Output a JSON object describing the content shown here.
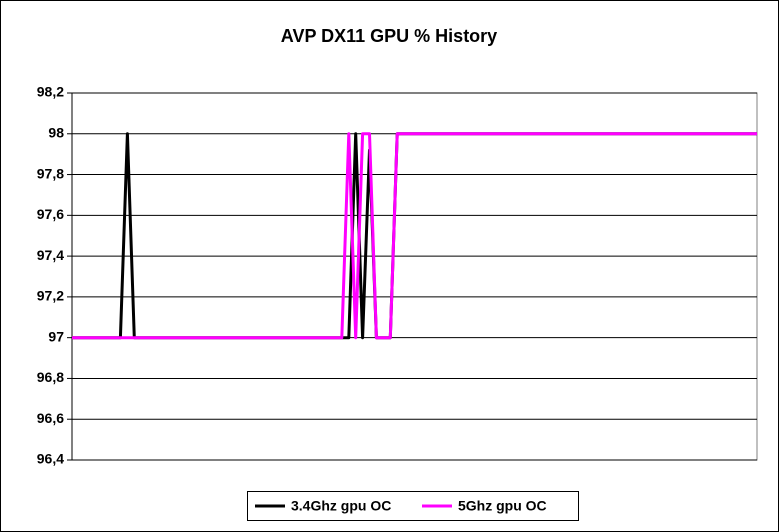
{
  "chart_data": {
    "type": "line",
    "title": "AVP DX11 GPU % History",
    "categories": [
      null,
      null,
      null,
      null,
      null,
      null,
      null,
      null,
      null,
      null,
      null,
      null,
      null,
      null,
      null,
      null,
      null,
      null,
      null,
      null,
      null,
      null,
      null,
      null,
      null,
      null,
      null,
      null,
      null,
      null,
      null,
      null,
      null,
      null,
      null,
      null,
      null,
      null,
      null,
      null,
      null,
      null,
      null,
      null,
      null,
      null,
      null,
      null,
      null,
      null,
      null,
      null,
      null,
      null,
      null,
      null,
      null,
      null,
      null,
      null,
      null,
      null,
      null,
      null,
      null,
      null,
      null,
      null,
      null,
      null,
      null,
      null,
      null,
      null,
      null,
      null,
      null,
      null,
      null,
      null,
      null,
      null,
      null,
      null,
      null,
      null,
      null,
      null,
      null,
      null,
      null,
      null,
      null,
      null,
      null,
      null,
      null,
      null,
      null,
      null
    ],
    "series": [
      {
        "name": "3.4Ghz gpu OC",
        "color": "#000000",
        "values": [
          97,
          97,
          97,
          97,
          97,
          97,
          97,
          97,
          98,
          97,
          97,
          97,
          97,
          97,
          97,
          97,
          97,
          97,
          97,
          97,
          97,
          97,
          97,
          97,
          97,
          97,
          97,
          97,
          97,
          97,
          97,
          97,
          97,
          97,
          97,
          97,
          97,
          97,
          97,
          97,
          97,
          98,
          97,
          97.92,
          97,
          97,
          97,
          98,
          98,
          98,
          98,
          98,
          98,
          98,
          98,
          98,
          98,
          98,
          98,
          98,
          98,
          98,
          98,
          98,
          98,
          98,
          98,
          98,
          98,
          98,
          98,
          98,
          98,
          98,
          98,
          98,
          98,
          98,
          98,
          98,
          98,
          98,
          98,
          98,
          98,
          98,
          98,
          98,
          98,
          98,
          98,
          98,
          98,
          98,
          98,
          98,
          98,
          98,
          98,
          98
        ]
      },
      {
        "name": "5Ghz gpu OC",
        "color": "#ff00ff",
        "values": [
          97,
          97,
          97,
          97,
          97,
          97,
          97,
          97,
          97,
          97,
          97,
          97,
          97,
          97,
          97,
          97,
          97,
          97,
          97,
          97,
          97,
          97,
          97,
          97,
          97,
          97,
          97,
          97,
          97,
          97,
          97,
          97,
          97,
          97,
          97,
          97,
          97,
          97,
          97,
          97,
          98,
          97,
          98,
          98,
          97,
          97,
          97,
          98,
          98,
          98,
          98,
          98,
          98,
          98,
          98,
          98,
          98,
          98,
          98,
          98,
          98,
          98,
          98,
          98,
          98,
          98,
          98,
          98,
          98,
          98,
          98,
          98,
          98,
          98,
          98,
          98,
          98,
          98,
          98,
          98,
          98,
          98,
          98,
          98,
          98,
          98,
          98,
          98,
          98,
          98,
          98,
          98,
          98,
          98,
          98,
          98,
          98,
          98,
          98,
          98
        ]
      }
    ],
    "ylim": [
      96.4,
      98.2
    ],
    "yticks": [
      {
        "value": 96.4,
        "label": "96,4"
      },
      {
        "value": 96.6,
        "label": "96,6"
      },
      {
        "value": 96.8,
        "label": "96,8"
      },
      97,
      {
        "value": 97.2,
        "label": "97,2"
      },
      {
        "value": 97.4,
        "label": "97,4"
      },
      {
        "value": 97.6,
        "label": "97,6"
      },
      {
        "value": 97.8,
        "label": "97,8"
      },
      98,
      {
        "value": 98.2,
        "label": "98,2"
      }
    ],
    "grid": true,
    "legend": "bottom"
  }
}
